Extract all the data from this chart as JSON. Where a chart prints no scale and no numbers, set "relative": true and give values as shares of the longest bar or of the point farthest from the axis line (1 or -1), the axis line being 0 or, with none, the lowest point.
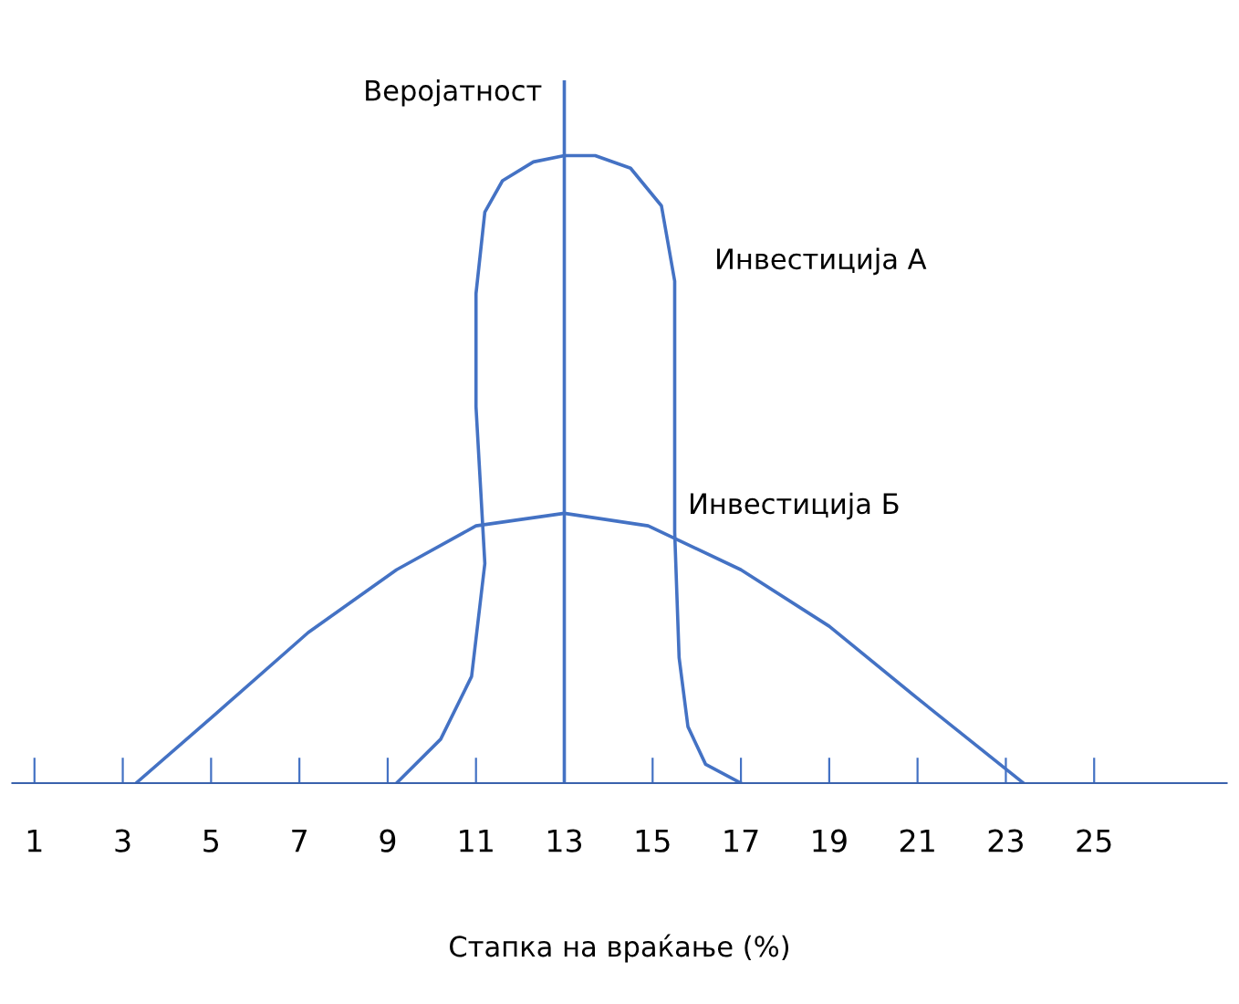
{
  "chart_data": {
    "type": "line",
    "relative": true,
    "ylabel": "Веројатност",
    "xlabel": "Стапка на враќање (%)",
    "xlim": [
      0.5,
      28
    ],
    "xticks": [
      1,
      3,
      5,
      7,
      9,
      11,
      13,
      15,
      17,
      19,
      21,
      23,
      25
    ],
    "ref_lines": [
      {
        "axis": "x",
        "value": 13,
        "color": "#4472c4"
      }
    ],
    "grid": false,
    "legend": false,
    "marker": "none",
    "line_style": "solid",
    "series": [
      {
        "name": "Инвестиција А",
        "color": "#4472c4",
        "x": [
          9.2,
          10.2,
          10.9,
          11.2,
          11.0,
          11.0,
          11.2,
          11.6,
          12.3,
          13.0,
          13.7,
          14.5,
          15.2,
          15.5,
          15.5,
          15.5,
          15.6,
          15.8,
          16.2,
          17.0
        ],
        "values": [
          0,
          0.07,
          0.17,
          0.35,
          0.6,
          0.78,
          0.91,
          0.96,
          0.99,
          1.0,
          1.0,
          0.98,
          0.92,
          0.8,
          0.6,
          0.4,
          0.2,
          0.09,
          0.03,
          0
        ]
      },
      {
        "name": "Инвестиција Б",
        "color": "#4472c4",
        "x": [
          3.3,
          5.1,
          7.2,
          9.2,
          11.0,
          13.0,
          14.9,
          17.0,
          19.0,
          21.0,
          23.4
        ],
        "values": [
          0,
          0.11,
          0.24,
          0.34,
          0.41,
          0.43,
          0.41,
          0.34,
          0.25,
          0.135,
          0
        ]
      }
    ]
  }
}
